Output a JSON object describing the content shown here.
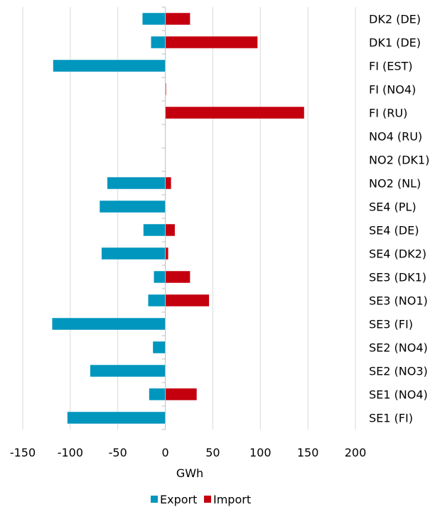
{
  "chart_data": {
    "type": "bar",
    "orientation": "horizontal",
    "categories": [
      "DK2 (DE)",
      "DK1 (DE)",
      "FI (EST)",
      "FI (NO4)",
      "FI (RU)",
      "NO4 (RU)",
      "NO2 (DK1)",
      "NO2 (NL)",
      "SE4 (PL)",
      "SE4 (DE)",
      "SE4 (DK2)",
      "SE3 (DK1)",
      "SE3 (NO1)",
      "SE3 (FI)",
      "SE2 (NO4)",
      "SE2 (NO3)",
      "SE1 (NO4)",
      "SE1 (FI)"
    ],
    "series": [
      {
        "name": "Export",
        "color": "#0096bd",
        "values": [
          -24,
          -15,
          -118,
          0,
          0,
          0,
          0,
          -61,
          -69,
          -23,
          -67,
          -12,
          -18,
          -119,
          -13,
          -79,
          -17,
          -103
        ]
      },
      {
        "name": "Import",
        "color": "#c4000f",
        "values": [
          26,
          97,
          0,
          0.5,
          146,
          0,
          0,
          6,
          0,
          10,
          3,
          26,
          46,
          0,
          0,
          0,
          33,
          0
        ]
      }
    ],
    "xlabel": "GWh",
    "ylabel": "",
    "title": "",
    "xlim": [
      -150,
      200
    ],
    "xticks": [
      "-150",
      "-100",
      "-50",
      "0",
      "50",
      "100",
      "150",
      "200"
    ],
    "grid": "vertical",
    "legend": "bottom",
    "stacked": true
  }
}
